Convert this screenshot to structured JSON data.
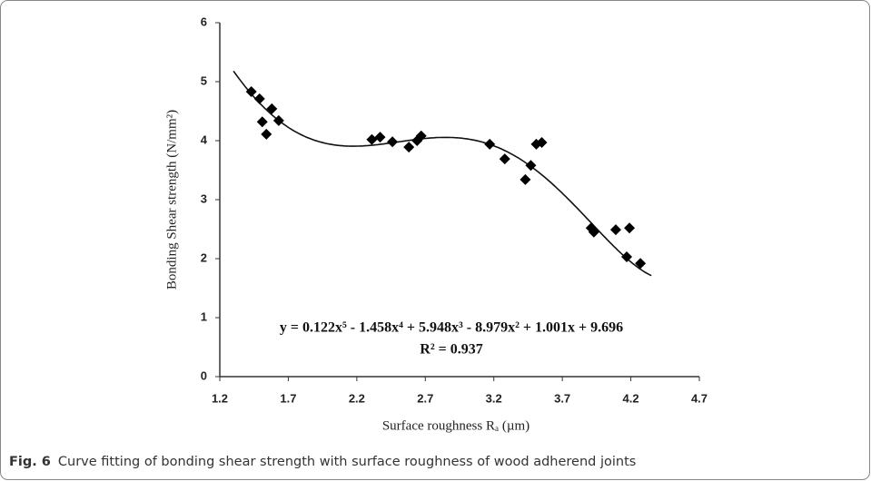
{
  "chart_data": {
    "type": "scatter",
    "xlabel": "Surface roughness Rₐ (µm)",
    "ylabel": "Bonding Shear strength  (N/mm²)",
    "x": [
      1.43,
      1.49,
      1.51,
      1.54,
      1.58,
      1.63,
      2.31,
      2.37,
      2.46,
      2.58,
      2.64,
      2.67,
      3.17,
      3.28,
      3.43,
      3.47,
      3.51,
      3.55,
      3.91,
      3.93,
      4.09,
      4.19,
      4.17,
      4.27
    ],
    "values": [
      4.83,
      4.71,
      4.32,
      4.11,
      4.54,
      4.34,
      4.02,
      4.06,
      3.98,
      3.89,
      4.0,
      4.08,
      3.94,
      3.69,
      3.34,
      3.58,
      3.94,
      3.97,
      2.52,
      2.45,
      2.49,
      2.52,
      2.03,
      1.92
    ],
    "color": "#000000",
    "fit": {
      "coefficients": [
        0.122,
        -1.458,
        5.948,
        -8.979,
        1.001,
        9.696
      ],
      "xrange": [
        1.3,
        4.35
      ]
    },
    "annotations": [
      "y = 0.122x⁵ - 1.458x⁴ + 5.948x³ - 8.979x² + 1.001x + 9.696",
      "R² = 0.937"
    ],
    "xlim": [
      1.2,
      4.7
    ],
    "xticks": [
      1.2,
      1.7,
      2.2,
      2.7,
      3.2,
      3.7,
      4.2,
      4.7
    ],
    "ylim": [
      0,
      6
    ],
    "yticks": [
      0,
      1,
      2,
      3,
      4,
      5,
      6
    ]
  },
  "caption": {
    "label": "Fig. 6",
    "text": "Curve fitting of bonding shear strength with surface roughness of wood adherend joints"
  }
}
